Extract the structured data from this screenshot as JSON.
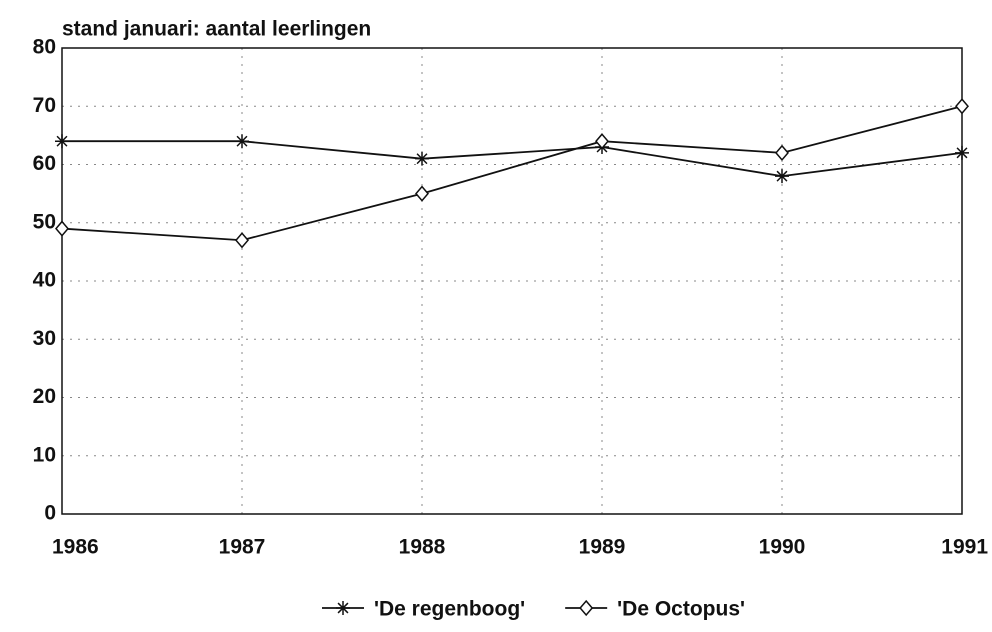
{
  "chart_data": {
    "type": "line",
    "title": "stand januari: aantal leerlingen",
    "x": [
      1986,
      1987,
      1988,
      1989,
      1990,
      1991
    ],
    "series": [
      {
        "name": "'De regenboog'",
        "color": "#111111",
        "marker": "star",
        "values": [
          64,
          64,
          61,
          63,
          58,
          62
        ]
      },
      {
        "name": "'De Octopus'",
        "color": "#111111",
        "marker": "diamond",
        "values": [
          49,
          47,
          55,
          64,
          62,
          70
        ]
      }
    ],
    "xlim": [
      1986,
      1991
    ],
    "xticks": [
      1986,
      1987,
      1988,
      1989,
      1990,
      1991
    ],
    "ylim": [
      0,
      80
    ],
    "yticks": [
      0,
      10,
      20,
      30,
      40,
      50,
      60,
      70,
      80
    ],
    "grid": true,
    "legend": "bottom"
  }
}
